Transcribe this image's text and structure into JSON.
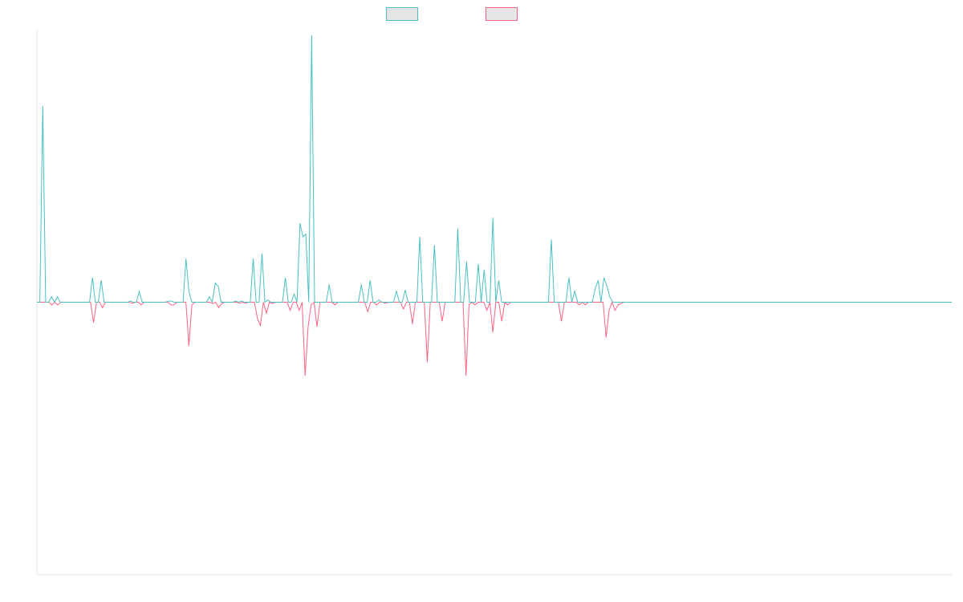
{
  "chart_data": {
    "type": "line",
    "title": "",
    "xlabel": "",
    "ylabel": "",
    "grid": false,
    "legend_position": "top-center",
    "ylim": [
      -1,
      1
    ],
    "colors": {
      "teal": "#4bc0c0",
      "pink": "#ff6384",
      "legend_fill": "#e5e5e5",
      "axis": "#e5e5e5"
    },
    "series": [
      {
        "color_key": "teal",
        "values": [
          0,
          0,
          0.72,
          0,
          0,
          0.02,
          0,
          0.02,
          0,
          0,
          0,
          0,
          0,
          0,
          0,
          0,
          0,
          0,
          0,
          0.09,
          0,
          0,
          0.08,
          0,
          0,
          0,
          0,
          0,
          0,
          0,
          0,
          0,
          0.004,
          0,
          0,
          0.04,
          0,
          0,
          0,
          0,
          0,
          0,
          0,
          0,
          0,
          0.004,
          0.004,
          0,
          0,
          0,
          0,
          0.16,
          0.04,
          0,
          0,
          0,
          0,
          0,
          0,
          0.02,
          0,
          0.07,
          0.06,
          0,
          0,
          0,
          0,
          0,
          0.004,
          0,
          0.004,
          0,
          0,
          0,
          0.16,
          0,
          0,
          0.18,
          0,
          0.008,
          0,
          0,
          0,
          0,
          0,
          0.09,
          0,
          0,
          0.03,
          0,
          0.29,
          0.24,
          0.25,
          0,
          0.98,
          0,
          0,
          0,
          0,
          0,
          0.065,
          0,
          0,
          0,
          0,
          0,
          0,
          0,
          0,
          0,
          0,
          0.065,
          0,
          0,
          0.08,
          0,
          0,
          0.008,
          0,
          0,
          0,
          0,
          0,
          0.04,
          0,
          0,
          0.045,
          0,
          0,
          0,
          0,
          0.24,
          0,
          0,
          0,
          0,
          0.21,
          0,
          0,
          0,
          0,
          0,
          0,
          0,
          0.27,
          0,
          0,
          0.15,
          0,
          0,
          0,
          0.14,
          0,
          0.12,
          0,
          0,
          0.31,
          0,
          0.08,
          0,
          0,
          0,
          0,
          0,
          0,
          0,
          0,
          0,
          0,
          0,
          0,
          0,
          0,
          0,
          0,
          0,
          0.23,
          0,
          0,
          0,
          0,
          0,
          0.09,
          0,
          0.04,
          0,
          0,
          0,
          0,
          0,
          0,
          0.05,
          0.08,
          0,
          0.09,
          0.06,
          0.02,
          0,
          0,
          0,
          0,
          0,
          0,
          0,
          0,
          0,
          0,
          0,
          0,
          0,
          0,
          0,
          0,
          0,
          0,
          0,
          0,
          0,
          0,
          0,
          0,
          0,
          0,
          0,
          0,
          0,
          0,
          0,
          0,
          0,
          0,
          0,
          0,
          0,
          0,
          0,
          0,
          0,
          0,
          0,
          0,
          0,
          0,
          0,
          0,
          0,
          0,
          0,
          0,
          0,
          0,
          0,
          0,
          0,
          0,
          0,
          0,
          0,
          0,
          0,
          0,
          0,
          0,
          0,
          0,
          0,
          0,
          0,
          0,
          0,
          0,
          0,
          0,
          0,
          0,
          0,
          0,
          0,
          0,
          0,
          0,
          0,
          0,
          0,
          0,
          0,
          0,
          0,
          0,
          0,
          0,
          0,
          0,
          0,
          0,
          0,
          0,
          0,
          0,
          0,
          0,
          0,
          0,
          0,
          0,
          0,
          0,
          0,
          0,
          0,
          0,
          0,
          0,
          0
        ]
      },
      {
        "color_key": "pink",
        "values": [
          0,
          0,
          0,
          0,
          0,
          -0.01,
          0,
          -0.01,
          0,
          0,
          0,
          0,
          0,
          0,
          0,
          0,
          0,
          0,
          0,
          -0.075,
          0,
          0,
          -0.02,
          0,
          0,
          0,
          0,
          0,
          0,
          0,
          0,
          0,
          -0.004,
          0,
          0,
          -0.01,
          0,
          0,
          0,
          0,
          0,
          0,
          0,
          0,
          0,
          -0.01,
          -0.01,
          0,
          0,
          0,
          0,
          -0.16,
          -0.01,
          0,
          0,
          0,
          0,
          0,
          0,
          -0.005,
          0,
          -0.02,
          -0.005,
          0,
          0,
          0,
          0,
          0,
          -0.004,
          0,
          -0.004,
          0,
          0,
          0,
          -0.06,
          -0.085,
          0,
          -0.04,
          0,
          -0.005,
          0,
          0,
          0,
          0,
          0,
          -0.03,
          0,
          0,
          -0.03,
          0,
          -0.27,
          -0.09,
          -0.01,
          0,
          -0.09,
          0,
          0,
          0,
          0,
          0,
          -0.01,
          0,
          0,
          0,
          0,
          0,
          0,
          0,
          0,
          0,
          0,
          -0.035,
          0,
          0,
          -0.01,
          0,
          0,
          -0.004,
          0,
          0,
          0,
          0,
          0,
          -0.025,
          0,
          0,
          -0.08,
          0,
          0,
          0,
          0,
          -0.22,
          0,
          0,
          0,
          0,
          -0.07,
          0,
          0,
          0,
          0,
          0,
          0,
          0,
          -0.27,
          -0.01,
          0,
          -0.01,
          0,
          0,
          0,
          -0.03,
          0,
          -0.11,
          0,
          0,
          -0.07,
          0,
          -0.01,
          0,
          0,
          0,
          0,
          0,
          0,
          0,
          0,
          0,
          0,
          0,
          0,
          0,
          0,
          0,
          0,
          0,
          -0.07,
          0,
          0,
          0,
          0,
          0,
          -0.01,
          0,
          -0.01,
          0,
          0,
          0,
          0,
          0,
          0,
          -0.13,
          -0.03,
          0,
          -0.03,
          -0.01,
          -0.005,
          0,
          0,
          0,
          0,
          0,
          0,
          0,
          0,
          0,
          0,
          0,
          0,
          0,
          0,
          0,
          0,
          0,
          0,
          0,
          0,
          0,
          0,
          0,
          0,
          0,
          0,
          0,
          0,
          0,
          0,
          0,
          0,
          0,
          0,
          0,
          0,
          0,
          0,
          0,
          0,
          0,
          0,
          0,
          0,
          0,
          0,
          0,
          0,
          0,
          0,
          0,
          0,
          0,
          0,
          0,
          0,
          0,
          0,
          0,
          0,
          0,
          0,
          0,
          0,
          0,
          0,
          0,
          0,
          0,
          0,
          0,
          0,
          0,
          0,
          0,
          0,
          0,
          0,
          0,
          0,
          0,
          0,
          0,
          0,
          0,
          0,
          0,
          0,
          0,
          0,
          0,
          0,
          0,
          0,
          0,
          0,
          0,
          0,
          0,
          0,
          0,
          0,
          0,
          0,
          0,
          0,
          0,
          0,
          0,
          0,
          0
        ]
      }
    ]
  }
}
